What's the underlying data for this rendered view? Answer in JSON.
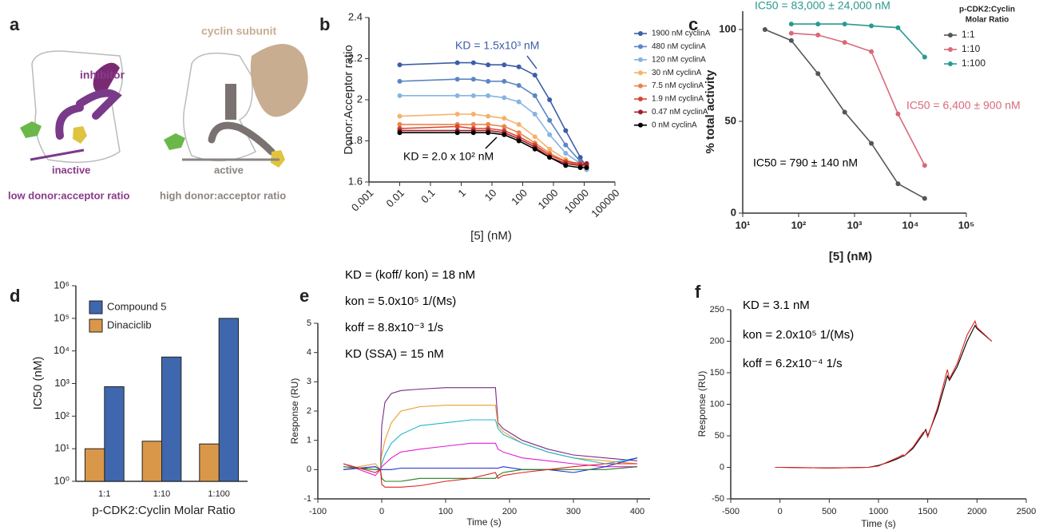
{
  "diagram": {
    "panel": "a",
    "inhibitor": "inhibitor",
    "inactive": "inactive",
    "low_ratio": "low donor:acceptor ratio",
    "cyclin": "cyclin subunit",
    "active": "active",
    "high_ratio": "high donor:acceptor ratio"
  },
  "chart_data": [
    {
      "panel": "b",
      "type": "line",
      "markers": true,
      "xscale": "log",
      "xlabel": "[5] (nM)",
      "ylabel": "Donor:Acceptor ratio",
      "x": [
        0.01,
        0.75,
        2.5,
        7.5,
        25,
        75,
        250,
        750,
        2500,
        7500,
        12000
      ],
      "xlim": [
        0.001,
        100000
      ],
      "xticks": [
        0.001,
        0.01,
        0.1,
        1,
        10,
        100,
        1000,
        10000,
        100000
      ],
      "ylim": [
        1.6,
        2.4
      ],
      "yticks": [
        1.6,
        1.8,
        2.0,
        2.2,
        2.4
      ],
      "series": [
        {
          "name": "1900 nM cyclinA",
          "color": "#3b5ea8",
          "values": [
            2.17,
            2.18,
            2.18,
            2.17,
            2.17,
            2.16,
            2.12,
            2.0,
            1.85,
            1.72,
            1.67
          ]
        },
        {
          "name": "480 nM cyclinA",
          "color": "#5b86c4",
          "values": [
            2.09,
            2.1,
            2.1,
            2.09,
            2.09,
            2.07,
            2.02,
            1.9,
            1.78,
            1.7,
            1.66
          ]
        },
        {
          "name": "120 nM cyclinA",
          "color": "#86b4e0",
          "values": [
            2.02,
            2.02,
            2.02,
            2.02,
            2.01,
            1.99,
            1.93,
            1.83,
            1.74,
            1.69,
            1.66
          ]
        },
        {
          "name": "30 nM cyclinA",
          "color": "#f5b26b",
          "values": [
            1.92,
            1.93,
            1.93,
            1.92,
            1.91,
            1.88,
            1.82,
            1.76,
            1.71,
            1.68,
            1.67
          ]
        },
        {
          "name": "7.5 nM cyclinA",
          "color": "#e9844c",
          "values": [
            1.88,
            1.88,
            1.88,
            1.88,
            1.87,
            1.84,
            1.79,
            1.74,
            1.7,
            1.68,
            1.68
          ]
        },
        {
          "name": "1.9 nM cyclinA",
          "color": "#d9442f",
          "values": [
            1.86,
            1.87,
            1.86,
            1.86,
            1.85,
            1.82,
            1.78,
            1.73,
            1.7,
            1.69,
            1.68
          ]
        },
        {
          "name": "0.47 nM cyclinA",
          "color": "#a0202a",
          "values": [
            1.85,
            1.85,
            1.85,
            1.85,
            1.84,
            1.81,
            1.77,
            1.72,
            1.69,
            1.68,
            1.69
          ]
        },
        {
          "name": "0 nM cyclinA",
          "color": "#000000",
          "values": [
            1.84,
            1.84,
            1.84,
            1.84,
            1.83,
            1.8,
            1.76,
            1.72,
            1.68,
            1.67,
            1.67
          ]
        }
      ],
      "annotations": [
        {
          "text": "KD = 1.5x10³ nM",
          "color": "#3b5ea8"
        },
        {
          "text": "KD = 2.0 x 10² nM",
          "color": "#000000"
        }
      ]
    },
    {
      "panel": "c",
      "type": "line",
      "markers": true,
      "xscale": "log",
      "xlabel": "[5] (nM)",
      "ylabel": "% total activity",
      "legend_title": [
        "p-CDK2:Cyclin",
        "Molar  Ratio"
      ],
      "x": [
        25,
        74,
        222,
        667,
        2000,
        6000,
        18000
      ],
      "xlim": [
        10,
        100000
      ],
      "xticks": [
        {
          "value": 10,
          "label": "10¹"
        },
        {
          "value": 100,
          "label": "10²"
        },
        {
          "value": 1000,
          "label": "10³"
        },
        {
          "value": 10000,
          "label": "10⁴"
        },
        {
          "value": 100000,
          "label": "10⁵"
        }
      ],
      "ylim": [
        0,
        110
      ],
      "yticks": [
        0,
        50,
        100
      ],
      "series": [
        {
          "name": "1:1",
          "color": "#555555",
          "values": [
            100,
            94,
            76,
            55,
            38,
            16,
            8
          ]
        },
        {
          "name": "1:10",
          "color": "#d9697a",
          "values": [
            null,
            98,
            97,
            93,
            88,
            54,
            26
          ]
        },
        {
          "name": "1:100",
          "color": "#2a9a90",
          "values": [
            null,
            103,
            103,
            103,
            102,
            101,
            85
          ]
        }
      ],
      "annotations": [
        {
          "text": "IC50 = 83,000 ± 24,000 nM",
          "color": "#2a9a90"
        },
        {
          "text": "IC50 = 6,400 ± 900 nM",
          "color": "#d9697a"
        },
        {
          "text": "IC50 = 790 ± 140 nM",
          "color": "#000000"
        }
      ]
    },
    {
      "panel": "d",
      "type": "bar",
      "yscale": "log",
      "xlabel": "p-CDK2:Cyclin  Molar Ratio",
      "ylabel": "IC50 (nM)",
      "categories": [
        "1:1",
        "1:10",
        "1:100"
      ],
      "ylim": [
        1,
        1000000
      ],
      "yticks": [
        {
          "value": 1,
          "label": "10⁰"
        },
        {
          "value": 10,
          "label": "10¹"
        },
        {
          "value": 100,
          "label": "10²"
        },
        {
          "value": 1000,
          "label": "10³"
        },
        {
          "value": 10000,
          "label": "10⁴"
        },
        {
          "value": 100000,
          "label": "10⁵"
        },
        {
          "value": 1000000,
          "label": "10⁶"
        }
      ],
      "series": [
        {
          "name": "Compound 5",
          "color": "#3f67ae",
          "values": [
            800,
            6500,
            100000
          ]
        },
        {
          "name": "Dinaciclib",
          "color": "#d9974a",
          "values": [
            10,
            17,
            14
          ]
        }
      ]
    },
    {
      "panel": "e",
      "type": "line",
      "xlabel": "Time (s)",
      "ylabel": "Response (RU)",
      "x": [
        -60,
        -10,
        -2,
        0,
        5,
        15,
        30,
        60,
        100,
        140,
        178,
        182,
        190,
        220,
        260,
        300,
        350,
        400
      ],
      "xlim": [
        -100,
        420
      ],
      "xticks": [
        -100,
        0,
        100,
        200,
        300,
        400
      ],
      "ylim": [
        -1,
        5
      ],
      "yticks": [
        -1,
        0,
        1,
        2,
        3,
        4,
        5
      ],
      "series": [
        {
          "color": "#7a2a8a",
          "values": [
            0,
            0.1,
            0,
            1.5,
            2.3,
            2.6,
            2.7,
            2.75,
            2.8,
            2.8,
            2.8,
            1.6,
            1.4,
            1.0,
            0.7,
            0.5,
            0.4,
            0.3
          ]
        },
        {
          "color": "#e8a030",
          "values": [
            0,
            0.2,
            0,
            0.5,
            1.0,
            1.6,
            2.0,
            2.15,
            2.2,
            2.2,
            2.2,
            1.5,
            1.3,
            0.9,
            0.6,
            0.4,
            0.3,
            0.2
          ]
        },
        {
          "color": "#20b8c8",
          "values": [
            0.1,
            0,
            0,
            0.2,
            0.5,
            0.9,
            1.2,
            1.5,
            1.6,
            1.7,
            1.7,
            1.4,
            1.2,
            0.9,
            0.6,
            0.4,
            0.2,
            0.4
          ]
        },
        {
          "color": "#e020d0",
          "values": [
            0.2,
            -0.2,
            0,
            0.1,
            0.2,
            0.4,
            0.6,
            0.7,
            0.8,
            0.9,
            0.9,
            0.7,
            0.6,
            0.4,
            0.3,
            0.2,
            0.1,
            0.1
          ]
        },
        {
          "color": "#2030d0",
          "values": [
            0,
            0.1,
            0,
            0,
            0,
            0,
            0.05,
            0.05,
            0.05,
            0.05,
            0.05,
            0.05,
            0.1,
            0,
            0,
            -0.1,
            0.1,
            0.4
          ]
        },
        {
          "color": "#208020",
          "values": [
            0.1,
            0,
            0,
            -0.3,
            -0.4,
            -0.4,
            -0.4,
            -0.3,
            -0.3,
            -0.3,
            -0.3,
            -0.2,
            -0.1,
            0,
            0,
            0,
            0,
            0.1
          ]
        },
        {
          "color": "#e02020",
          "values": [
            0.2,
            -0.1,
            0,
            -0.5,
            -0.6,
            -0.6,
            -0.6,
            -0.55,
            -0.4,
            -0.3,
            -0.1,
            -0.3,
            -0.2,
            -0.1,
            0,
            0.1,
            0.2,
            0.2
          ]
        }
      ],
      "annotations": [
        {
          "text": "KD = (koff/ kon) = 18 nM",
          "color": "#000000"
        },
        {
          "text": "kon = 5.0x10⁵ 1/(Ms)",
          "color": "#000000"
        },
        {
          "text": "koff = 8.8x10⁻³ 1/s",
          "color": "#000000"
        },
        {
          "text": "KD (SSA) = 15 nM",
          "color": "#000000"
        }
      ]
    },
    {
      "panel": "f",
      "type": "line",
      "xlabel": "Time (s)",
      "ylabel": "Response (RU)",
      "x": [
        -50,
        0,
        500,
        900,
        1000,
        1100,
        1200,
        1250,
        1260,
        1350,
        1450,
        1480,
        1500,
        1600,
        1700,
        1720,
        1800,
        1900,
        1980,
        2000,
        2150
      ],
      "xlim": [
        -500,
        2500
      ],
      "xticks": [
        -500,
        0,
        500,
        1000,
        1500,
        2000,
        2500
      ],
      "ylim": [
        -50,
        250
      ],
      "yticks": [
        -50,
        0,
        50,
        100,
        150,
        200,
        250
      ],
      "series": [
        {
          "color": "#000000",
          "values": [
            0,
            0,
            -1,
            0,
            3,
            8,
            14,
            18,
            18,
            30,
            52,
            60,
            50,
            90,
            145,
            138,
            160,
            200,
            225,
            220,
            200
          ]
        },
        {
          "color": "#e02020",
          "values": [
            0,
            0,
            -1,
            0,
            2,
            9,
            16,
            20,
            18,
            32,
            55,
            58,
            48,
            95,
            155,
            140,
            165,
            210,
            232,
            222,
            200
          ]
        }
      ],
      "annotations": [
        {
          "text": "KD = 3.1 nM",
          "color": "#000000"
        },
        {
          "text": "kon = 2.0x10⁵ 1/(Ms)",
          "color": "#000000"
        },
        {
          "text": "koff = 6.2x10⁻⁴ 1/s",
          "color": "#000000"
        }
      ]
    }
  ]
}
